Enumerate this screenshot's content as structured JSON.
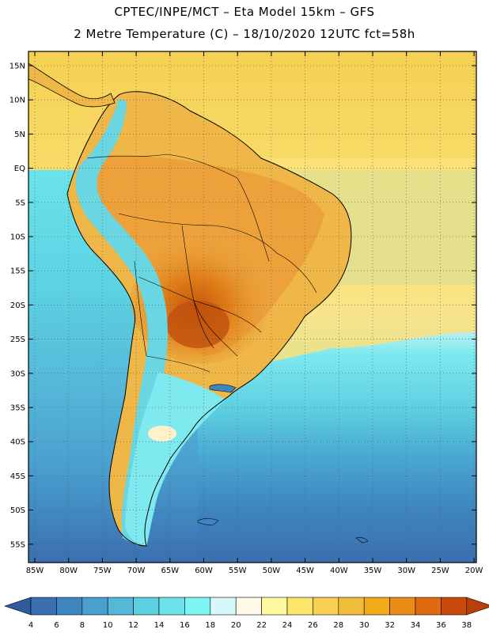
{
  "header": {
    "line1": "CPTEC/INPE/MCT –  Eta Model 15km – GFS",
    "line2": "2 Metre Temperature (C) – 18/10/2020 12UTC fct=58h"
  },
  "axes": {
    "lat_labels": [
      "15N",
      "10N",
      "5N",
      "EQ",
      "5S",
      "10S",
      "15S",
      "20S",
      "25S",
      "30S",
      "35S",
      "40S",
      "45S",
      "50S",
      "55S"
    ],
    "lon_labels": [
      "85W",
      "80W",
      "75W",
      "70W",
      "65W",
      "60W",
      "55W",
      "50W",
      "45W",
      "40W",
      "35W",
      "30W",
      "25W",
      "20W"
    ]
  },
  "colorbar": {
    "labels": [
      "4",
      "6",
      "8",
      "10",
      "12",
      "14",
      "16",
      "18",
      "20",
      "22",
      "24",
      "26",
      "28",
      "30",
      "32",
      "34",
      "36",
      "38"
    ],
    "colors": [
      "#3a6fb0",
      "#3f86c0",
      "#49a0cf",
      "#55b8d9",
      "#5ccfe0",
      "#6ae3ea",
      "#7ef5f5",
      "#d6f8fa",
      "#fffbe8",
      "#fff8a0",
      "#fde46a",
      "#f8d152",
      "#f0bd3a",
      "#f3aa18",
      "#ec8c18",
      "#df6a10",
      "#c84a0c"
    ],
    "low_end_color": "#2f5a9c",
    "high_end_color": "#b8400a"
  }
}
